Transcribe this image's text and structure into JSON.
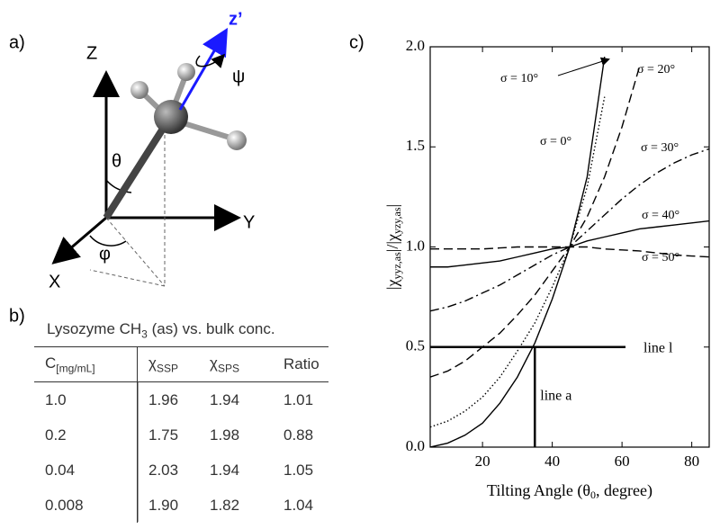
{
  "panel_a": {
    "label": "a)",
    "axis_z": "Z",
    "axis_y": "Y",
    "axis_x": "X",
    "axis_z_prime": "z’",
    "theta": "θ",
    "phi": "φ",
    "psi": "ψ"
  },
  "panel_b": {
    "label": "b)",
    "title": {
      "main": "Lysozyme CH",
      "sub": "3",
      "rest": "(as) vs. bulk conc."
    },
    "table": {
      "headers": [
        {
          "text": "C",
          "sub": "[mg/mL]"
        },
        {
          "text": "χ",
          "sub": "SSP"
        },
        {
          "text": "χ",
          "sub": "SPS"
        },
        {
          "text": "Ratio"
        }
      ],
      "rows": [
        [
          "1.0",
          "1.96",
          "1.94",
          "1.01"
        ],
        [
          "0.2",
          "1.75",
          "1.98",
          "0.88"
        ],
        [
          "0.04",
          "2.03",
          "1.94",
          "1.05"
        ],
        [
          "0.008",
          "1.90",
          "1.82",
          "1.04"
        ]
      ]
    }
  },
  "chart_data": {
    "type": "line",
    "label": "c)",
    "x_label": [
      "Tilting Angle (θ",
      "0",
      ", degree)"
    ],
    "y_label": [
      "|χ",
      "yyz,as",
      "|/|χ",
      "yzy,as",
      "|"
    ],
    "x": [
      5,
      10,
      15,
      20,
      25,
      30,
      35,
      40,
      45,
      50,
      55,
      60,
      65,
      70,
      75,
      80,
      85
    ],
    "xlim": [
      5,
      85
    ],
    "xticks": [
      20,
      40,
      60,
      80
    ],
    "ylim": [
      0,
      2
    ],
    "yticks": [
      {
        "value": 0,
        "label": "0.0"
      },
      0.5,
      {
        "value": 1,
        "label": "1.0"
      },
      1.5,
      {
        "value": 2,
        "label": "2.0"
      }
    ],
    "series": [
      {
        "name": "σ = 0°",
        "color": "#000000",
        "style": "solid",
        "values": [
          0,
          0.02,
          0.06,
          0.12,
          0.22,
          0.35,
          0.52,
          0.74,
          1.0,
          1.35,
          1.95,
          null,
          null,
          null,
          null,
          null,
          null
        ]
      },
      {
        "name": "σ = 10°",
        "color": "#000000",
        "style": "dotted",
        "values": [
          0.1,
          0.13,
          0.18,
          0.25,
          0.35,
          0.48,
          0.62,
          0.8,
          1.0,
          1.3,
          1.75,
          null,
          null,
          null,
          null,
          null,
          null
        ]
      },
      {
        "name": "σ = 20°",
        "color": "#000000",
        "style": "dashed",
        "values": [
          0.35,
          0.38,
          0.43,
          0.5,
          0.57,
          0.66,
          0.76,
          0.88,
          1.0,
          1.15,
          1.35,
          1.6,
          1.9,
          null,
          null,
          null,
          null
        ]
      },
      {
        "name": "σ = 30°",
        "color": "#000000",
        "style": "dashdot",
        "values": [
          0.68,
          0.7,
          0.73,
          0.77,
          0.81,
          0.86,
          0.91,
          0.96,
          1.0,
          1.08,
          1.16,
          1.24,
          1.31,
          1.37,
          1.42,
          1.46,
          1.49
        ]
      },
      {
        "name": "σ = 40°",
        "color": "#000000",
        "style": "solid",
        "values": [
          0.9,
          0.9,
          0.91,
          0.92,
          0.93,
          0.95,
          0.97,
          0.99,
          1.0,
          1.03,
          1.05,
          1.07,
          1.09,
          1.1,
          1.11,
          1.12,
          1.13
        ]
      },
      {
        "name": "σ = 50°",
        "color": "#000000",
        "style": "dashed",
        "values": [
          0.99,
          0.99,
          0.99,
          0.99,
          0.995,
          1.0,
          1.0,
          1.0,
          1.0,
          1.0,
          0.99,
          0.985,
          0.98,
          0.97,
          0.96,
          0.955,
          0.95
        ]
      }
    ],
    "reference_lines": [
      {
        "label": "line l",
        "y": 0.5,
        "xrange": [
          5,
          61
        ]
      },
      {
        "label": "line a",
        "x": 35,
        "yrange": [
          0,
          0.5
        ]
      }
    ]
  }
}
